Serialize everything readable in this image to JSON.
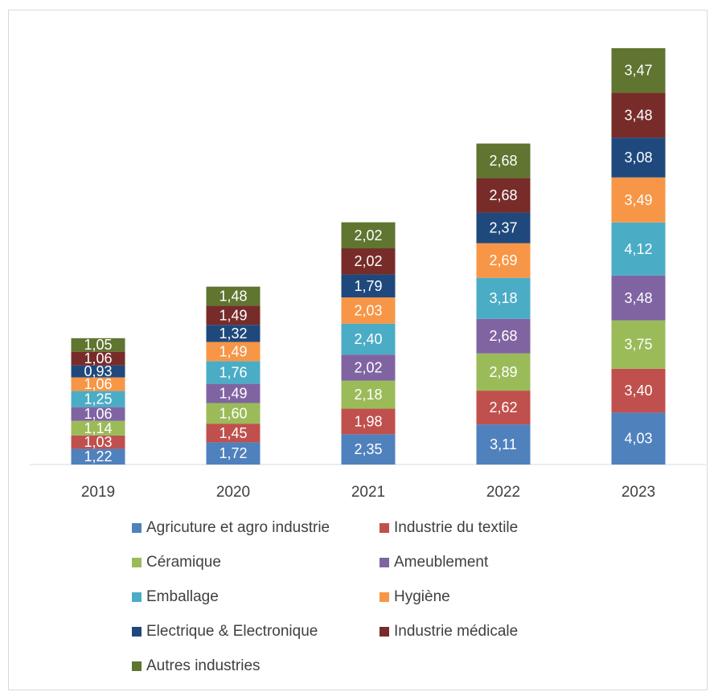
{
  "chart_data": {
    "type": "bar",
    "stacked": true,
    "title": "",
    "xlabel": "",
    "ylabel": "",
    "categories": [
      "2019",
      "2020",
      "2021",
      "2022",
      "2023"
    ],
    "grid": false,
    "legend_position": "bottom",
    "series": [
      {
        "name": "Agricuture et agro industrie",
        "color": "#4F81BD",
        "values": [
          1.22,
          1.72,
          2.35,
          3.11,
          4.03
        ],
        "labels": [
          "1,22",
          "1,72",
          "2,35",
          "3,11",
          "4,03"
        ]
      },
      {
        "name": "Industrie du textile",
        "color": "#C0504D",
        "values": [
          1.03,
          1.45,
          1.98,
          2.62,
          3.4
        ],
        "labels": [
          "1,03",
          "1,45",
          "1,98",
          "2,62",
          "3,40"
        ]
      },
      {
        "name": "Céramique",
        "color": "#9BBB59",
        "values": [
          1.14,
          1.6,
          2.18,
          2.89,
          3.75
        ],
        "labels": [
          "1,14",
          "1,60",
          "2,18",
          "2,89",
          "3,75"
        ]
      },
      {
        "name": "Ameublement",
        "color": "#8064A2",
        "values": [
          1.06,
          1.49,
          2.02,
          2.68,
          3.48
        ],
        "labels": [
          "1,06",
          "1,49",
          "2,02",
          "2,68",
          "3,48"
        ]
      },
      {
        "name": "Emballage",
        "color": "#4BACC6",
        "values": [
          1.25,
          1.76,
          2.4,
          3.18,
          4.12
        ],
        "labels": [
          "1,25",
          "1,76",
          "2,40",
          "3,18",
          "4,12"
        ]
      },
      {
        "name": "Hygiène",
        "color": "#F79646",
        "values": [
          1.06,
          1.49,
          2.03,
          2.69,
          3.49
        ],
        "labels": [
          "1,06",
          "1,49",
          "2,03",
          "2,69",
          "3,49"
        ]
      },
      {
        "name": "Electrique & Electronique",
        "color": "#1F497D",
        "values": [
          0.93,
          1.32,
          1.79,
          2.37,
          3.08
        ],
        "labels": [
          "0,93",
          "1,32",
          "1,79",
          "2,37",
          "3,08"
        ]
      },
      {
        "name": "Industrie médicale",
        "color": "#772C2A",
        "values": [
          1.06,
          1.49,
          2.02,
          2.68,
          3.48
        ],
        "labels": [
          "1,06",
          "1,49",
          "2,02",
          "2,68",
          "3,48"
        ]
      },
      {
        "name": "Autres industries",
        "color": "#5F7530",
        "values": [
          1.05,
          1.48,
          2.02,
          2.68,
          3.47
        ],
        "labels": [
          "1,05",
          "1,48",
          "2,02",
          "2,68",
          "3,47"
        ]
      }
    ]
  }
}
